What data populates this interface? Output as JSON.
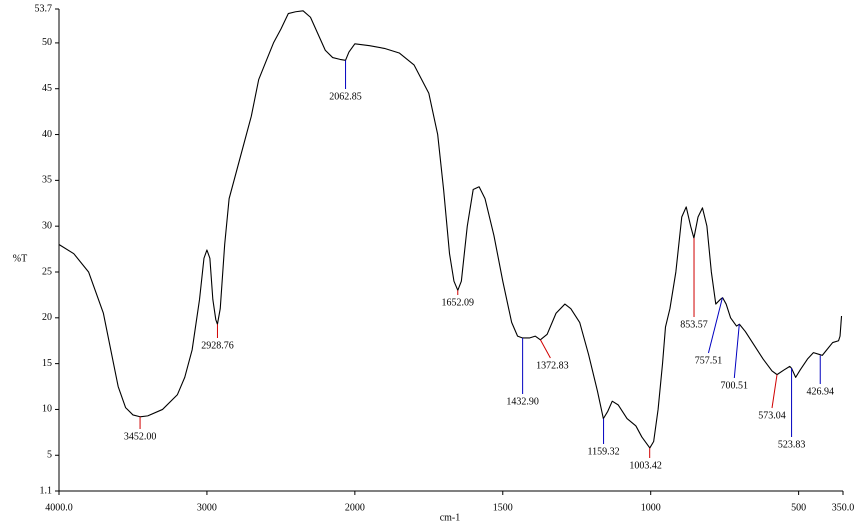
{
  "chart_data": {
    "type": "line",
    "y_label": "%T",
    "x_label": "cm-1",
    "xlim": [
      4000,
      350
    ],
    "x_scale_break": 2000,
    "xticks": [
      {
        "value": 4000,
        "label": "4000.0"
      },
      3000,
      2000,
      1500,
      1000,
      500,
      {
        "value": 350,
        "label": "350.0"
      }
    ],
    "ylim": [
      1.1,
      53.7
    ],
    "yticks": [
      1.1,
      5,
      10,
      15,
      20,
      25,
      30,
      35,
      40,
      45,
      50,
      53.7
    ],
    "series": [
      {
        "color": "#000000",
        "x": [
          4000,
          3900,
          3800,
          3700,
          3650,
          3600,
          3550,
          3500,
          3452,
          3400,
          3300,
          3200,
          3150,
          3100,
          3050,
          3020,
          3000,
          2980,
          2960,
          2940,
          2929,
          2910,
          2880,
          2850,
          2800,
          2750,
          2700,
          2650,
          2600,
          2550,
          2500,
          2450,
          2400,
          2350,
          2300,
          2250,
          2200,
          2150,
          2100,
          2063,
          2040,
          2000,
          1950,
          1900,
          1850,
          1800,
          1750,
          1720,
          1700,
          1680,
          1665,
          1652,
          1640,
          1620,
          1600,
          1580,
          1560,
          1530,
          1500,
          1470,
          1450,
          1433,
          1410,
          1390,
          1373,
          1350,
          1320,
          1290,
          1270,
          1240,
          1210,
          1180,
          1160,
          1145,
          1130,
          1110,
          1080,
          1050,
          1030,
          1003,
          990,
          975,
          960,
          950,
          935,
          915,
          895,
          880,
          865,
          854,
          840,
          825,
          810,
          795,
          780,
          765,
          757,
          745,
          730,
          710,
          700,
          680,
          650,
          620,
          590,
          573,
          550,
          530,
          524,
          510,
          495,
          470,
          450,
          430,
          420,
          405,
          385,
          365,
          360,
          355
        ],
        "values": [
          28.0,
          27.0,
          25.0,
          20.5,
          16.5,
          12.5,
          10.2,
          9.4,
          9.2,
          9.3,
          10.0,
          11.6,
          13.5,
          16.5,
          22,
          26.5,
          27.4,
          26.5,
          22,
          19.8,
          19.3,
          21,
          28,
          33,
          36,
          39,
          42,
          46,
          48,
          50,
          51.5,
          53.2,
          53.4,
          53.5,
          52.8,
          51,
          49.2,
          48.4,
          48.2,
          48.1,
          49.0,
          49.9,
          49.7,
          49.4,
          48.9,
          47.6,
          44.5,
          40,
          34,
          27,
          24,
          23.0,
          24,
          30,
          34,
          34.3,
          33,
          29,
          24,
          19.5,
          18,
          17.8,
          17.8,
          18.0,
          17.6,
          18.2,
          20.5,
          21.5,
          21,
          19.5,
          16,
          12,
          9,
          9.8,
          10.9,
          10.5,
          9.0,
          8.2,
          7,
          5.8,
          6.5,
          10,
          15,
          19,
          21,
          25,
          31,
          32.1,
          30,
          28.7,
          31,
          32,
          30,
          25,
          21.5,
          22,
          22.2,
          21.5,
          20,
          19.1,
          19.3,
          18.5,
          17,
          15.5,
          14.2,
          13.8,
          14.3,
          14.7,
          14.5,
          13.5,
          14.3,
          15.5,
          16.2,
          16.0,
          15.9,
          16.5,
          17.3,
          17.5,
          18,
          20.2
        ]
      }
    ],
    "peaks": [
      {
        "x": 3452.0,
        "y": 9.2,
        "label": "3452.00",
        "color": "#d00000"
      },
      {
        "x": 2928.76,
        "y": 19.3,
        "label": "2928.76",
        "color": "#d00000"
      },
      {
        "x": 2062.85,
        "y": 48.1,
        "label": "2062.85",
        "color": "#0000c0"
      },
      {
        "x": 1652.09,
        "y": 23.0,
        "label": "1652.09",
        "color": "#d00000"
      },
      {
        "x": 1432.9,
        "y": 17.8,
        "label": "1432.90",
        "color": "#0000c0"
      },
      {
        "x": 1372.83,
        "y": 17.6,
        "label": "1372.83",
        "color": "#d00000"
      },
      {
        "x": 1159.32,
        "y": 9.0,
        "label": "1159.32",
        "color": "#0000c0"
      },
      {
        "x": 1003.42,
        "y": 5.8,
        "label": "1003.42",
        "color": "#d00000"
      },
      {
        "x": 853.57,
        "y": 28.7,
        "label": "853.57",
        "color": "#d00000"
      },
      {
        "x": 757.51,
        "y": 22.2,
        "label": "757.51",
        "color": "#0000c0"
      },
      {
        "x": 700.51,
        "y": 19.3,
        "label": "700.51",
        "color": "#0000c0"
      },
      {
        "x": 573.04,
        "y": 13.8,
        "label": "573.04",
        "color": "#d00000"
      },
      {
        "x": 523.83,
        "y": 14.5,
        "label": "523.83",
        "color": "#0000c0"
      },
      {
        "x": 426.94,
        "y": 15.9,
        "label": "426.94",
        "color": "#0000c0"
      }
    ]
  }
}
